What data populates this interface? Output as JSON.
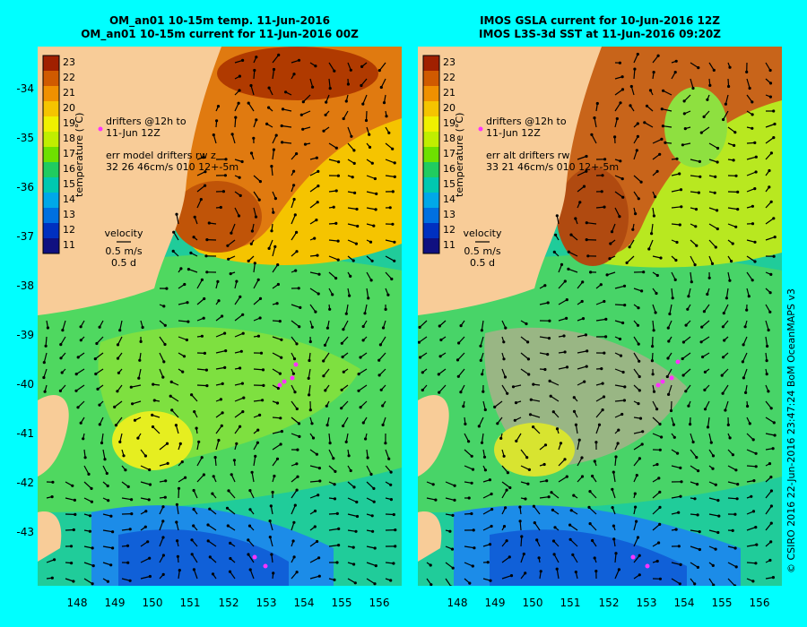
{
  "titles": {
    "left_line1": "OM_an01 10-15m temp. 11-Jun-2016",
    "left_line2": "OM_an01 10-15m current for 11-Jun-2016 00Z",
    "right_line1": "IMOS GSLA current for 10-Jun-2016 12Z",
    "right_line2": "IMOS L3S-3d SST at 11-Jun-2016 09:20Z"
  },
  "colorbar": {
    "title": "temperature (°C)",
    "labels": [
      "23",
      "22",
      "21",
      "20",
      "19",
      "18",
      "17",
      "16",
      "15",
      "14",
      "13",
      "12",
      "11"
    ],
    "colors": [
      "#a02000",
      "#d05a00",
      "#f09000",
      "#f5c400",
      "#f0f000",
      "#c0ee00",
      "#6ee000",
      "#20cc60",
      "#00c8b0",
      "#00a8e8",
      "#0070e0",
      "#0030c0",
      "#101080"
    ]
  },
  "legend_left": {
    "drifters_line1": "drifters @12h to",
    "drifters_line2": "11-Jun 12Z",
    "err_line1": "err model drifters rw z",
    "err_line2": "32 26 46cm/s 010 12+-5m",
    "velocity": "velocity",
    "velocity_scale": "0.5 m/s",
    "velocity_time": "0.5 d"
  },
  "legend_right": {
    "drifters_line1": "drifters @12h to",
    "drifters_line2": "11-Jun 12Z",
    "err_line1": "err alt drifters rw",
    "err_line2": "33 21 46cm/s 010 12+-5m",
    "velocity": "velocity",
    "velocity_scale": "0.5 m/s",
    "velocity_time": "0.5 d"
  },
  "axes": {
    "lat_labels": [
      "-34",
      "-35",
      "-36",
      "-37",
      "-38",
      "-39",
      "-40",
      "-41",
      "-42",
      "-43"
    ],
    "lon_labels": [
      "148",
      "149",
      "150",
      "151",
      "152",
      "153",
      "154",
      "155",
      "156"
    ]
  },
  "colors": {
    "land": "#f8cc98",
    "border": "#00ffff",
    "drifter": "#ff33ff"
  },
  "credit": "© CSIRO 2016  22-Jun-2016 23:47:24 BoM OceanMAPS v3"
}
